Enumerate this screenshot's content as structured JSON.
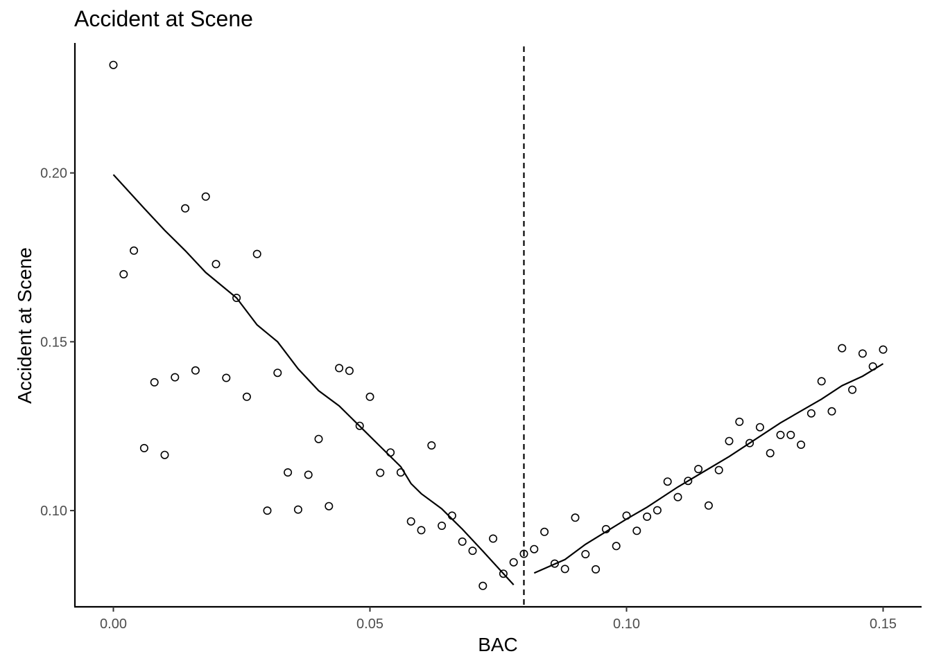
{
  "chart_data": {
    "type": "scatter",
    "title": "Accident at Scene",
    "xlabel": "BAC",
    "ylabel": "Accident at Scene",
    "xlim": [
      -0.0075,
      0.1575
    ],
    "ylim": [
      0.0715,
      0.2385
    ],
    "x_ticks": [
      0.0,
      0.05,
      0.1,
      0.15
    ],
    "x_tick_labels": [
      "0.00",
      "0.05",
      "0.10",
      "0.15"
    ],
    "y_ticks": [
      0.1,
      0.15,
      0.2
    ],
    "y_tick_labels": [
      "0.10",
      "0.15",
      "0.20"
    ],
    "grid": false,
    "cutoff_x": 0.08,
    "points": [
      [
        0.0,
        0.232
      ],
      [
        0.002,
        0.17
      ],
      [
        0.004,
        0.177
      ],
      [
        0.006,
        0.1185
      ],
      [
        0.008,
        0.138
      ],
      [
        0.01,
        0.1165
      ],
      [
        0.012,
        0.1395
      ],
      [
        0.014,
        0.1895
      ],
      [
        0.016,
        0.1415
      ],
      [
        0.018,
        0.193
      ],
      [
        0.02,
        0.173
      ],
      [
        0.022,
        0.1393
      ],
      [
        0.024,
        0.163
      ],
      [
        0.026,
        0.1337
      ],
      [
        0.028,
        0.176
      ],
      [
        0.03,
        0.1
      ],
      [
        0.032,
        0.1408
      ],
      [
        0.034,
        0.1113
      ],
      [
        0.036,
        0.1003
      ],
      [
        0.038,
        0.1106
      ],
      [
        0.04,
        0.1212
      ],
      [
        0.042,
        0.1013
      ],
      [
        0.044,
        0.1422
      ],
      [
        0.046,
        0.1414
      ],
      [
        0.048,
        0.1251
      ],
      [
        0.05,
        0.1337
      ],
      [
        0.052,
        0.1112
      ],
      [
        0.054,
        0.1172
      ],
      [
        0.056,
        0.1113
      ],
      [
        0.058,
        0.0968
      ],
      [
        0.06,
        0.0942
      ],
      [
        0.062,
        0.1193
      ],
      [
        0.064,
        0.0955
      ],
      [
        0.066,
        0.0985
      ],
      [
        0.068,
        0.0908
      ],
      [
        0.07,
        0.0881
      ],
      [
        0.072,
        0.0777
      ],
      [
        0.074,
        0.0917
      ],
      [
        0.076,
        0.0813
      ],
      [
        0.078,
        0.0847
      ],
      [
        0.08,
        0.0872
      ],
      [
        0.082,
        0.0886
      ],
      [
        0.084,
        0.0937
      ],
      [
        0.086,
        0.0843
      ],
      [
        0.088,
        0.0827
      ],
      [
        0.09,
        0.0979
      ],
      [
        0.092,
        0.0871
      ],
      [
        0.094,
        0.0826
      ],
      [
        0.096,
        0.0945
      ],
      [
        0.098,
        0.0895
      ],
      [
        0.1,
        0.0985
      ],
      [
        0.102,
        0.094
      ],
      [
        0.104,
        0.0982
      ],
      [
        0.106,
        0.1001
      ],
      [
        0.108,
        0.1086
      ],
      [
        0.11,
        0.104
      ],
      [
        0.112,
        0.1088
      ],
      [
        0.114,
        0.1123
      ],
      [
        0.116,
        0.1015
      ],
      [
        0.118,
        0.112
      ],
      [
        0.12,
        0.1206
      ],
      [
        0.122,
        0.1263
      ],
      [
        0.124,
        0.12
      ],
      [
        0.126,
        0.1247
      ],
      [
        0.128,
        0.117
      ],
      [
        0.13,
        0.1224
      ],
      [
        0.132,
        0.1224
      ],
      [
        0.134,
        0.1195
      ],
      [
        0.136,
        0.1288
      ],
      [
        0.138,
        0.1383
      ],
      [
        0.14,
        0.1294
      ],
      [
        0.142,
        0.1481
      ],
      [
        0.144,
        0.1358
      ],
      [
        0.146,
        0.1465
      ],
      [
        0.148,
        0.1427
      ],
      [
        0.15,
        0.1477
      ]
    ],
    "fit_left": [
      [
        0.0,
        0.1995
      ],
      [
        0.006,
        0.1895
      ],
      [
        0.01,
        0.183
      ],
      [
        0.014,
        0.177
      ],
      [
        0.018,
        0.1705
      ],
      [
        0.024,
        0.163
      ],
      [
        0.028,
        0.155
      ],
      [
        0.032,
        0.15
      ],
      [
        0.036,
        0.142
      ],
      [
        0.04,
        0.1355
      ],
      [
        0.044,
        0.131
      ],
      [
        0.048,
        0.125
      ],
      [
        0.052,
        0.119
      ],
      [
        0.056,
        0.113
      ],
      [
        0.058,
        0.108
      ],
      [
        0.06,
        0.105
      ],
      [
        0.064,
        0.1005
      ],
      [
        0.066,
        0.0975
      ],
      [
        0.068,
        0.0945
      ],
      [
        0.072,
        0.088
      ],
      [
        0.078,
        0.078
      ]
    ],
    "fit_right": [
      [
        0.082,
        0.0815
      ],
      [
        0.088,
        0.0855
      ],
      [
        0.092,
        0.09
      ],
      [
        0.1,
        0.0975
      ],
      [
        0.104,
        0.101
      ],
      [
        0.11,
        0.107
      ],
      [
        0.12,
        0.116
      ],
      [
        0.13,
        0.126
      ],
      [
        0.138,
        0.133
      ],
      [
        0.142,
        0.137
      ],
      [
        0.146,
        0.1398
      ],
      [
        0.15,
        0.1435
      ]
    ]
  }
}
